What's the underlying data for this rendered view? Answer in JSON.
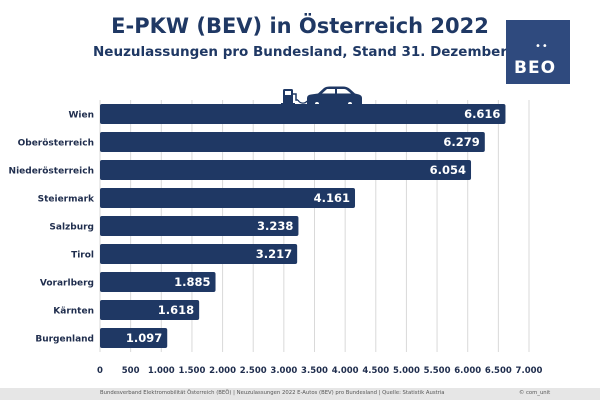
{
  "header": {
    "title": "E-PKW (BEV) in Österreich 2022",
    "subtitle": "Neuzulassungen pro Bundesland, Stand 31. Dezember"
  },
  "logo": {
    "text": "BEO",
    "dots": "••"
  },
  "footer": {
    "source": "Bundesverband Elektromobilität Österreich (BEÖ) | Neuzulassungen 2022 E-Autos (BEV) pro Bundesland | Quelle: Statistik Austria",
    "credit": "© com_unit"
  },
  "icons": [
    "charging-station-icon",
    "car-icon"
  ],
  "colors": {
    "bar": "#1f3864",
    "title": "#1f3864",
    "logo": "#2f4a7e",
    "grid": "#d9d9d9"
  },
  "chart_data": {
    "type": "bar",
    "orientation": "horizontal",
    "title": "E-PKW (BEV) in Österreich 2022",
    "subtitle": "Neuzulassungen pro Bundesland, Stand 31. Dezember",
    "categories": [
      "Wien",
      "Oberösterreich",
      "Niederösterreich",
      "Steiermark",
      "Salzburg",
      "Tirol",
      "Vorarlberg",
      "Kärnten",
      "Burgenland"
    ],
    "values": [
      6616,
      6279,
      6054,
      4161,
      3238,
      3217,
      1885,
      1618,
      1097
    ],
    "value_labels": [
      "6.616",
      "6.279",
      "6.054",
      "4.161",
      "3.238",
      "3.217",
      "1.885",
      "1.618",
      "1.097"
    ],
    "xlim": [
      0,
      7000
    ],
    "x_ticks": [
      0,
      500,
      1000,
      1500,
      2000,
      2500,
      3000,
      3500,
      4000,
      4500,
      5000,
      5500,
      6000,
      6500,
      7000
    ],
    "x_tick_labels": [
      "0",
      "500",
      "1.000",
      "1.500",
      "2.000",
      "2.500",
      "3.000",
      "3.500",
      "4.000",
      "4.500",
      "5.000",
      "5.500",
      "6.000",
      "6.500",
      "7.000"
    ],
    "grid": true,
    "legend": "none"
  }
}
